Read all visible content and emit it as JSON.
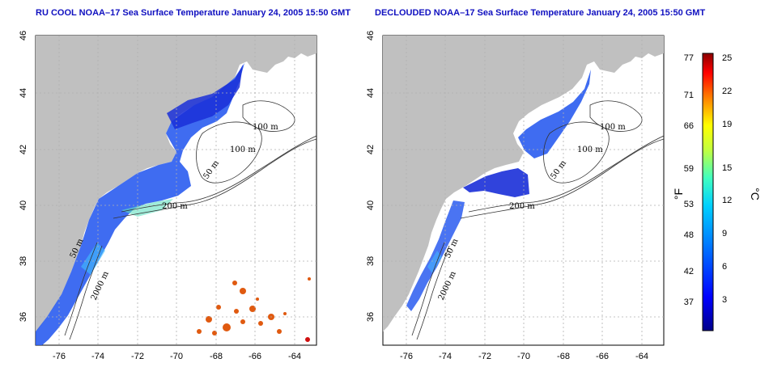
{
  "panels": [
    {
      "title": "RU COOL NOAA–17 Sea Surface Temperature January 24, 2005 15:50 GMT",
      "lat_ticks": [
        "46",
        "44",
        "42",
        "40",
        "38",
        "36"
      ],
      "lon_ticks": [
        "-76",
        "-74",
        "-72",
        "-70",
        "-68",
        "-66",
        "-64"
      ],
      "contour_labels": [
        "100 m",
        "100 m",
        "50 m",
        "200 m",
        "50 m",
        "2000 m"
      ]
    },
    {
      "title": "DECLOUDED NOAA–17 Sea Surface Temperature January 24, 2005 15:50 GMT",
      "lat_ticks": [
        "46",
        "44",
        "42",
        "40",
        "38",
        "36"
      ],
      "lon_ticks": [
        "-76",
        "-74",
        "-72",
        "-70",
        "-68",
        "-66",
        "-64"
      ],
      "contour_labels": [
        "100 m",
        "100 m",
        "50 m",
        "200 m",
        "50 m",
        "2000 m"
      ]
    }
  ],
  "colorbar": {
    "fahrenheit_ticks": [
      "77",
      "71",
      "66",
      "59",
      "53",
      "48",
      "42",
      "37"
    ],
    "celsius_ticks": [
      "25",
      "22",
      "19",
      "15",
      "12",
      "9",
      "6",
      "3"
    ],
    "fahrenheit_unit": "°F",
    "celsius_unit": "°C"
  },
  "colors": {
    "land": "#c0c0c0",
    "ocean": "#ffffff",
    "title": "#1010c0",
    "grid": "#b0b0b0"
  }
}
